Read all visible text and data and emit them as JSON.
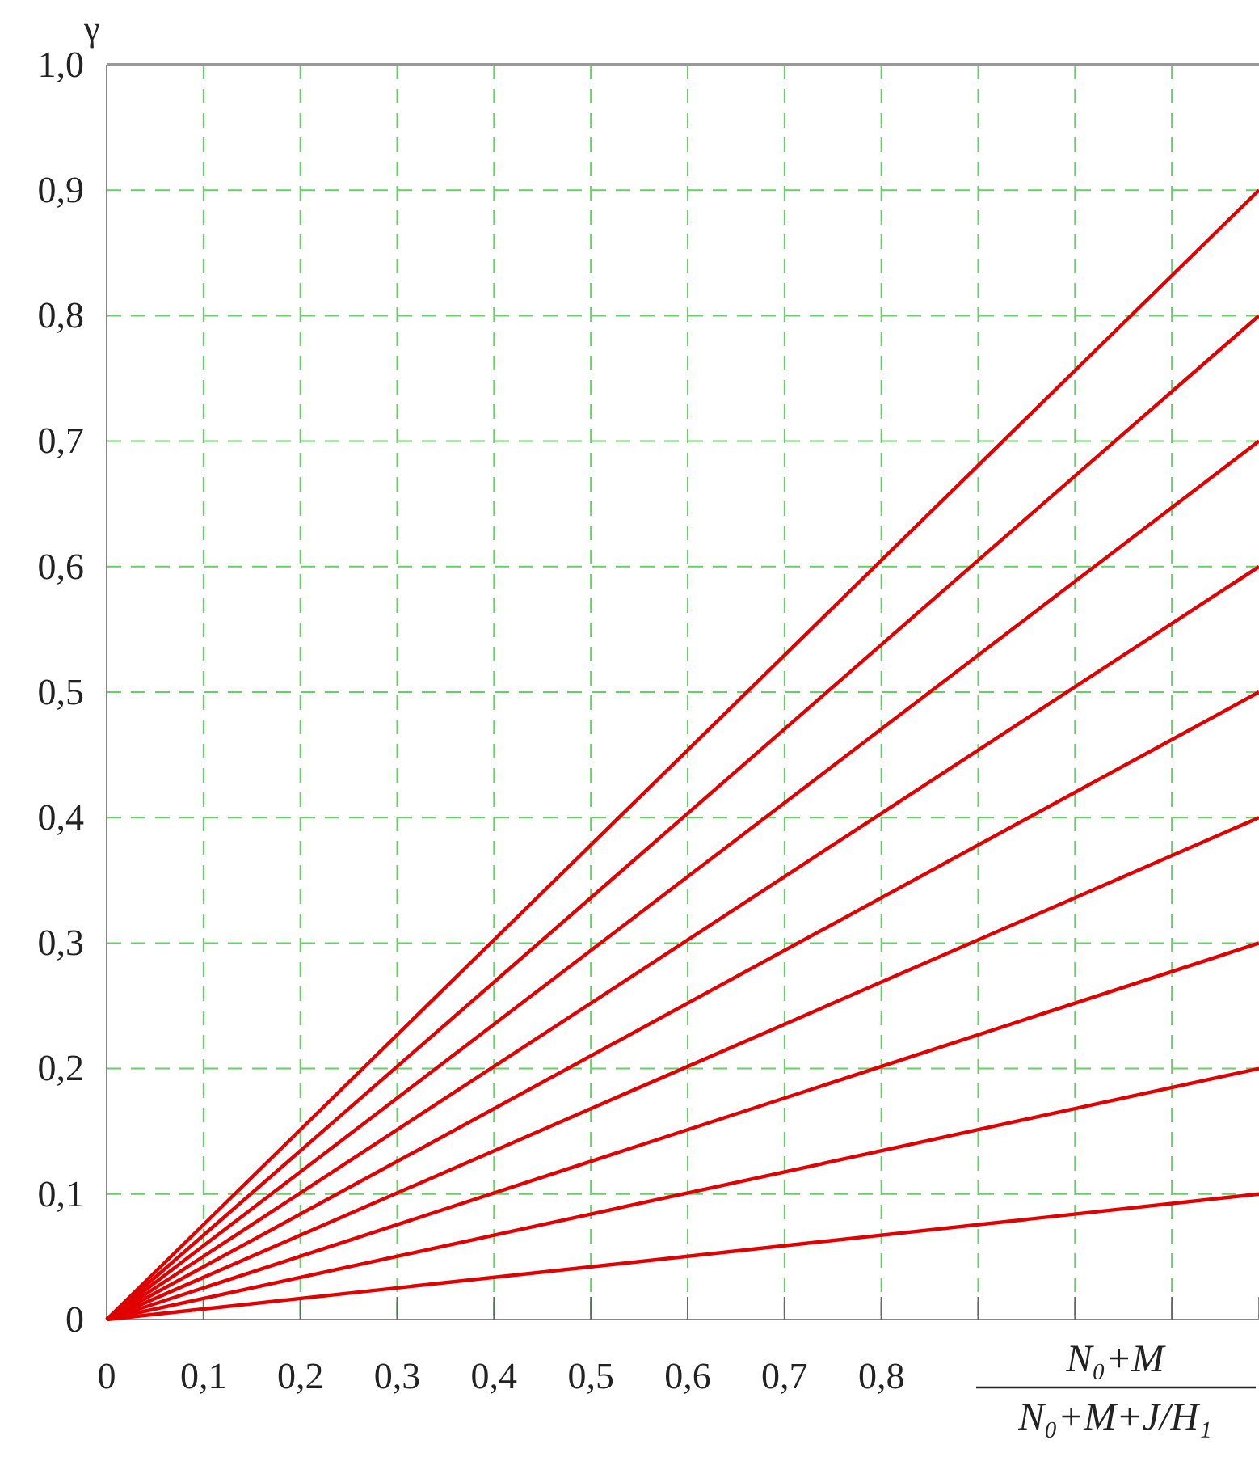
{
  "chart_data": {
    "type": "line",
    "xlabel": "N₀+M\nN₀+M+J/H₁",
    "ylabel": "γ",
    "xlim": [
      0,
      1.19
    ],
    "ylim": [
      0,
      1.0
    ],
    "xticks": [
      0,
      {
        "value": 0.1,
        "label": "0,1"
      },
      {
        "value": 0.2,
        "label": "0,2"
      },
      {
        "value": 0.3,
        "label": "0,3"
      },
      {
        "value": 0.4,
        "label": "0,4"
      },
      {
        "value": 0.5,
        "label": "0,5"
      },
      {
        "value": 0.6,
        "label": "0,6"
      },
      {
        "value": 0.7,
        "label": "0,7"
      },
      {
        "value": 0.8,
        "label": "0,8"
      },
      {
        "value": 0.9,
        "label": null
      },
      {
        "value": 1.0,
        "label": null
      },
      {
        "value": 1.1,
        "label": null
      }
    ],
    "yticks": [
      0,
      {
        "value": 0.1,
        "label": "0,1"
      },
      {
        "value": 0.2,
        "label": "0,2"
      },
      {
        "value": 0.3,
        "label": "0,3"
      },
      {
        "value": 0.4,
        "label": "0,4"
      },
      {
        "value": 0.5,
        "label": "0,5"
      },
      {
        "value": 0.6,
        "label": "0,6"
      },
      {
        "value": 0.7,
        "label": "0,7"
      },
      {
        "value": 0.8,
        "label": "0,8"
      },
      {
        "value": 0.9,
        "label": "0,9"
      },
      {
        "value": 1.0,
        "label": "1,0"
      }
    ],
    "grid": true,
    "line_style": "solid",
    "marker": "none",
    "x": [
      0,
      1.19
    ],
    "series": [
      {
        "color": "#e00000",
        "values": [
          0,
          0.9
        ]
      },
      {
        "color": "#e00000",
        "values": [
          0,
          0.8
        ]
      },
      {
        "color": "#e00000",
        "values": [
          0,
          0.7
        ]
      },
      {
        "color": "#e00000",
        "values": [
          0,
          0.6
        ]
      },
      {
        "color": "#e00000",
        "values": [
          0,
          0.5
        ]
      },
      {
        "color": "#e00000",
        "values": [
          0,
          0.4
        ]
      },
      {
        "color": "#e00000",
        "values": [
          0,
          0.3
        ]
      },
      {
        "color": "#e00000",
        "values": [
          0,
          0.2
        ]
      },
      {
        "color": "#e00000",
        "values": [
          0,
          0.1
        ]
      }
    ]
  }
}
